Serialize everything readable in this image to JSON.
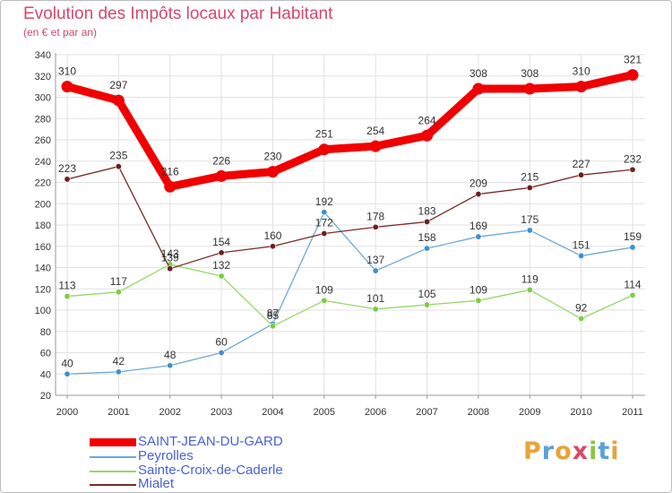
{
  "header": {
    "title": "Evolution des Impôts locaux par Habitant",
    "subtitle": "(en € et par an)"
  },
  "brand": {
    "letters": [
      "P",
      "r",
      "o",
      "x",
      "i",
      "t",
      "i"
    ],
    "colors": [
      "#e8a33a",
      "#5aa0d8",
      "#e8a33a",
      "#d94b6a",
      "#8cc63f",
      "#5aa0d8",
      "#e8a33a"
    ]
  },
  "chart_data": {
    "type": "line",
    "title": "Evolution des Impôts locaux par Habitant",
    "subtitle": "(en € et par an)",
    "xlabel": "",
    "ylabel": "",
    "categories": [
      "2000",
      "2001",
      "2002",
      "2003",
      "2004",
      "2005",
      "2006",
      "2007",
      "2008",
      "2009",
      "2010",
      "2011"
    ],
    "ylim": [
      20,
      340
    ],
    "yticks": [
      20,
      40,
      60,
      80,
      100,
      120,
      140,
      160,
      180,
      200,
      220,
      240,
      260,
      280,
      300,
      320,
      340
    ],
    "grid": true,
    "legend_position": "bottom-left",
    "series": [
      {
        "name": "SAINT-JEAN-DU-GARD",
        "color": "#f00000",
        "thick": true,
        "values": [
          310,
          297,
          216,
          226,
          230,
          251,
          254,
          264,
          308,
          308,
          310,
          321
        ]
      },
      {
        "name": "Peyrolles",
        "color": "#6fa8d6",
        "marker": "#3f8fce",
        "thick": false,
        "values": [
          40,
          42,
          48,
          60,
          87,
          192,
          137,
          158,
          169,
          175,
          151,
          159
        ]
      },
      {
        "name": "Sainte-Croix-de-Caderle",
        "color": "#99d66a",
        "marker": "#7ccc45",
        "thick": false,
        "values": [
          113,
          117,
          143,
          132,
          85,
          109,
          101,
          105,
          109,
          119,
          92,
          114
        ]
      },
      {
        "name": "Mialet",
        "color": "#7a2a2a",
        "marker": "#6b1f1f",
        "thick": false,
        "values": [
          223,
          235,
          139,
          154,
          160,
          172,
          178,
          183,
          209,
          215,
          227,
          232
        ]
      }
    ]
  }
}
